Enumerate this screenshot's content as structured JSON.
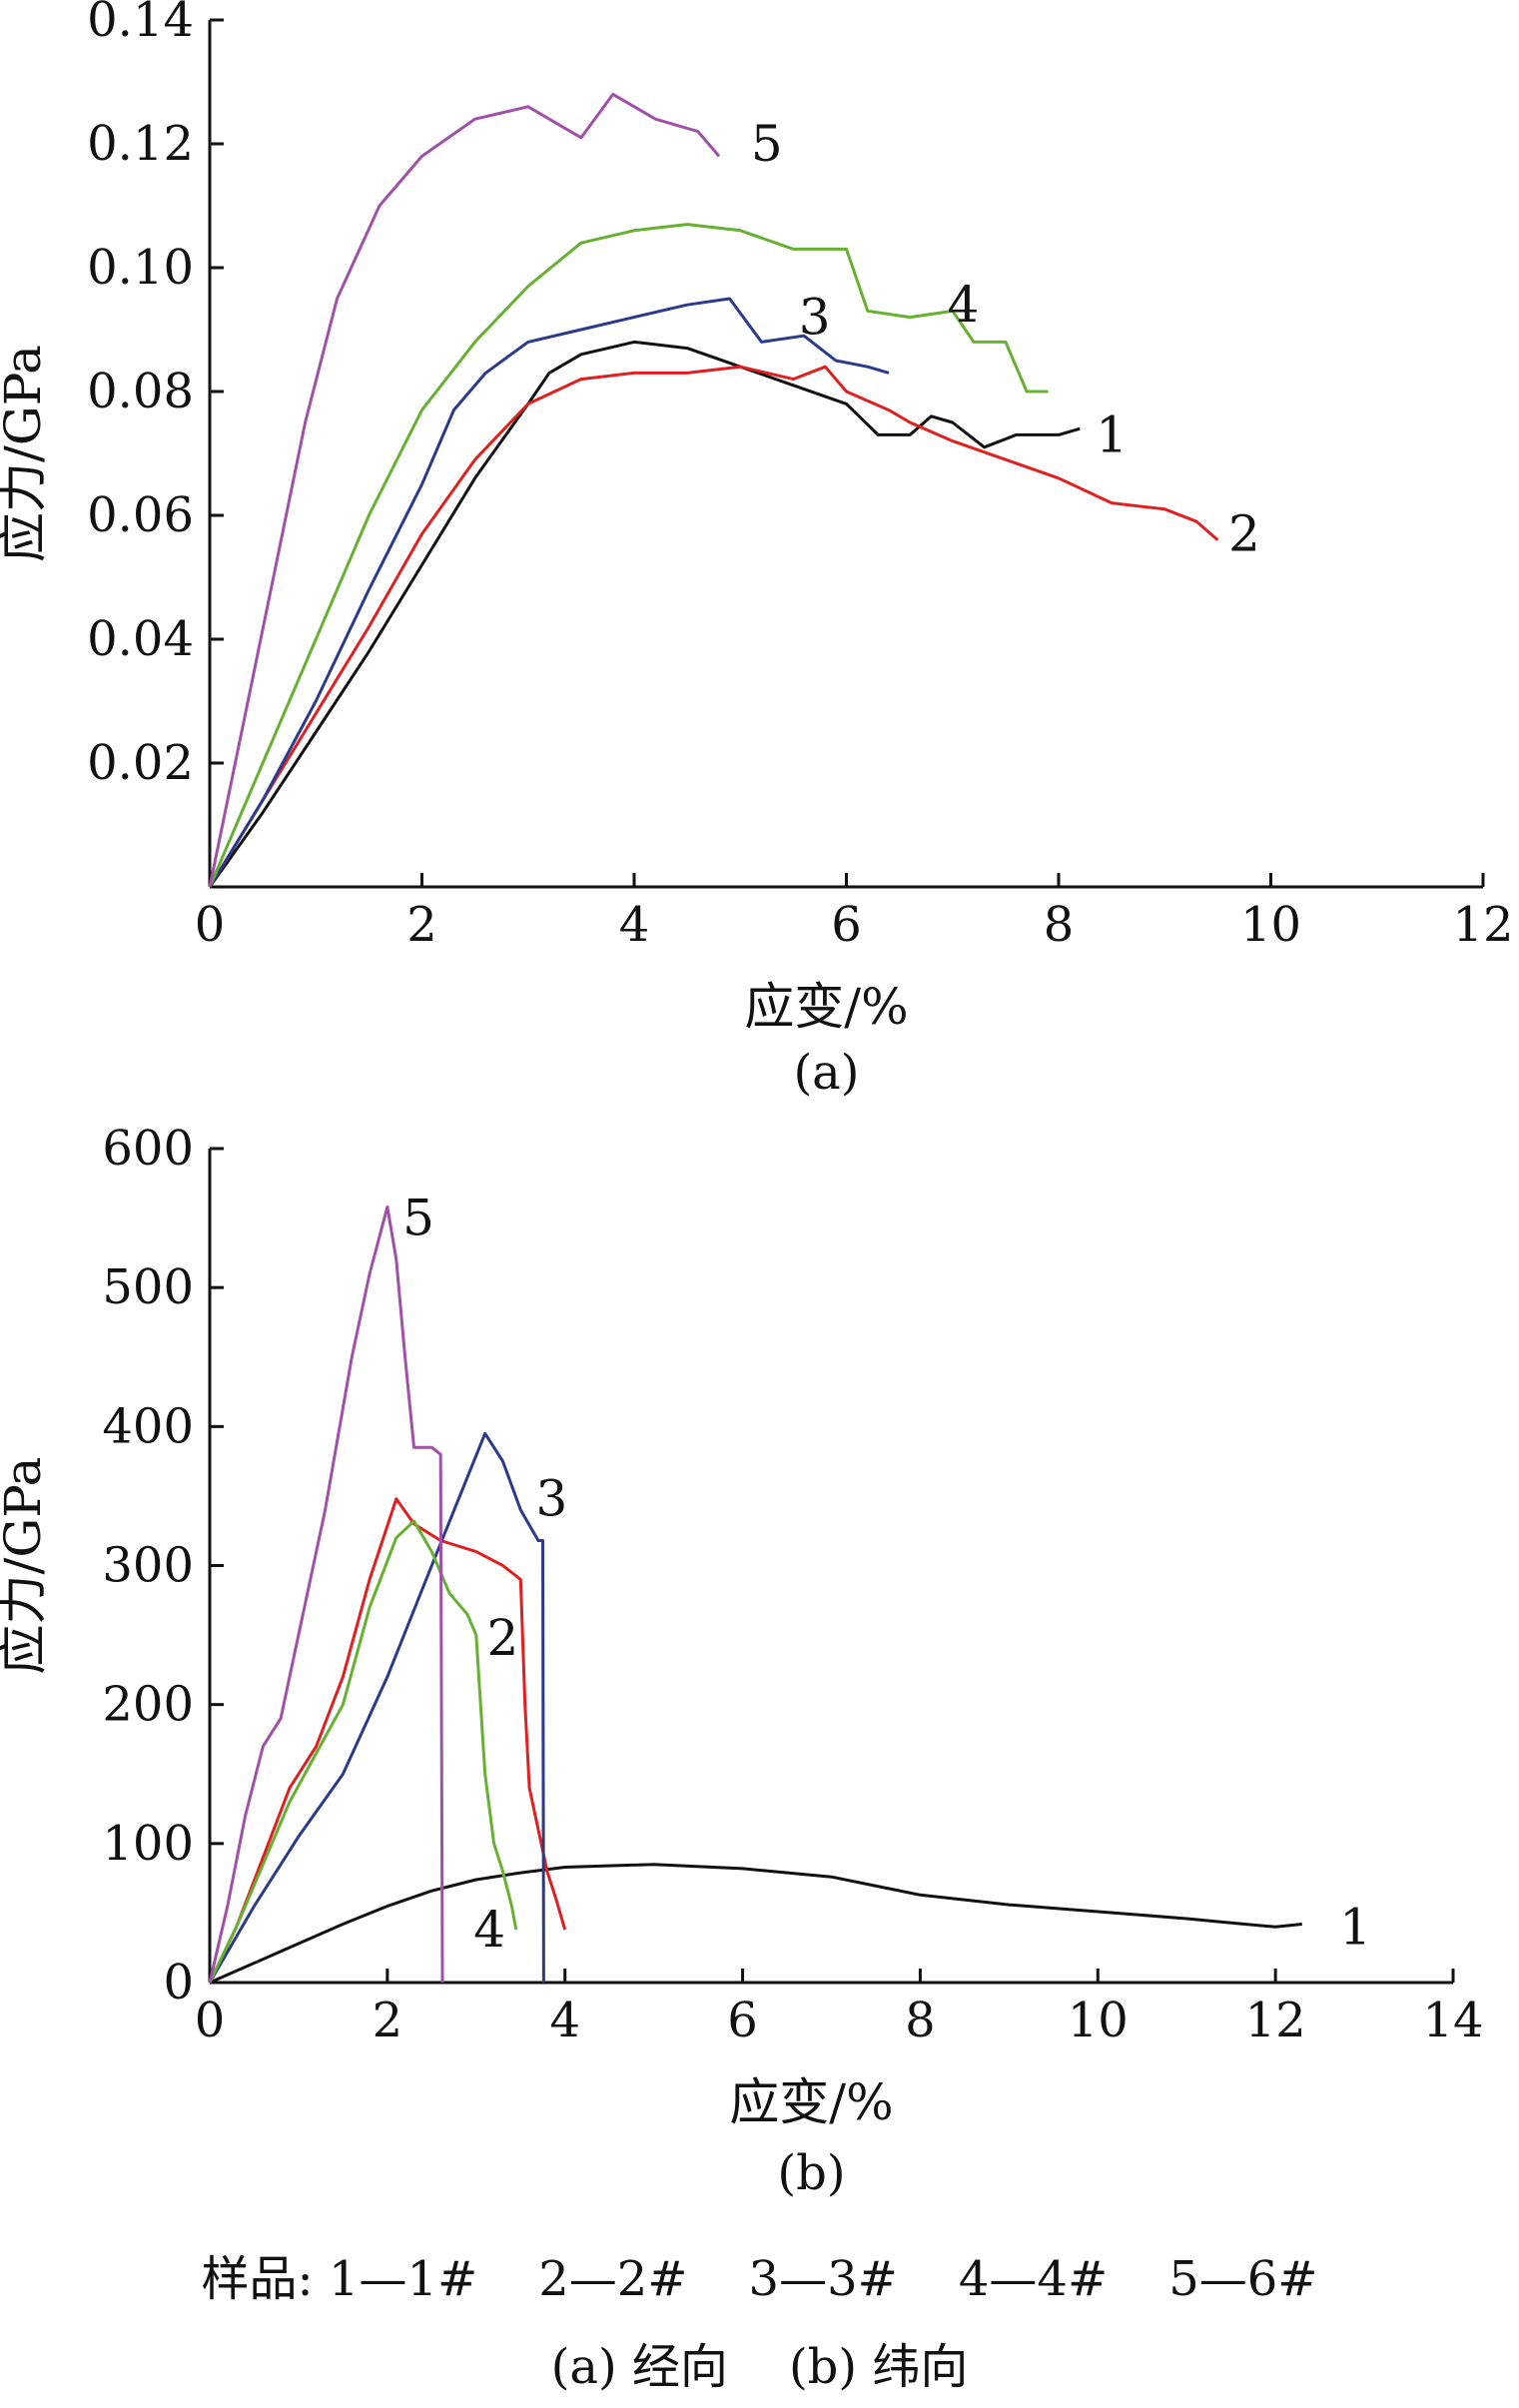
{
  "chart_data": [
    {
      "type": "line",
      "panel_label": "(a)",
      "xlabel": "应变/%",
      "ylabel": "应力/GPa",
      "xlim": [
        0,
        12
      ],
      "ylim": [
        0,
        0.14
      ],
      "x_ticks": [
        "0",
        "2",
        "4",
        "6",
        "8",
        "10",
        "12"
      ],
      "y_ticks": [
        "",
        "0.02",
        "0.04",
        "0.06",
        "0.08",
        "0.10",
        "0.12",
        "0.14"
      ],
      "series": [
        {
          "name": "1",
          "color": "#111111",
          "label_at": [
            8.5,
            0.073
          ],
          "points": [
            [
              0,
              0
            ],
            [
              0.5,
              0.012
            ],
            [
              1.0,
              0.025
            ],
            [
              1.5,
              0.038
            ],
            [
              2.0,
              0.052
            ],
            [
              2.5,
              0.066
            ],
            [
              3.0,
              0.078
            ],
            [
              3.2,
              0.083
            ],
            [
              3.5,
              0.086
            ],
            [
              4.0,
              0.088
            ],
            [
              4.5,
              0.087
            ],
            [
              5.0,
              0.084
            ],
            [
              5.5,
              0.081
            ],
            [
              6.0,
              0.078
            ],
            [
              6.3,
              0.073
            ],
            [
              6.6,
              0.073
            ],
            [
              6.8,
              0.076
            ],
            [
              7.0,
              0.075
            ],
            [
              7.3,
              0.071
            ],
            [
              7.6,
              0.073
            ],
            [
              8.0,
              0.073
            ],
            [
              8.2,
              0.074
            ]
          ]
        },
        {
          "name": "2",
          "color": "#e02020",
          "label_at": [
            9.75,
            0.057
          ],
          "points": [
            [
              0,
              0
            ],
            [
              0.5,
              0.014
            ],
            [
              1.0,
              0.028
            ],
            [
              1.5,
              0.042
            ],
            [
              2.0,
              0.057
            ],
            [
              2.5,
              0.069
            ],
            [
              3.0,
              0.078
            ],
            [
              3.5,
              0.082
            ],
            [
              4.0,
              0.083
            ],
            [
              4.5,
              0.083
            ],
            [
              5.0,
              0.084
            ],
            [
              5.5,
              0.082
            ],
            [
              5.8,
              0.084
            ],
            [
              6.0,
              0.08
            ],
            [
              6.4,
              0.077
            ],
            [
              6.6,
              0.075
            ],
            [
              7.0,
              0.072
            ],
            [
              7.5,
              0.069
            ],
            [
              8.0,
              0.066
            ],
            [
              8.5,
              0.062
            ],
            [
              9.0,
              0.061
            ],
            [
              9.3,
              0.059
            ],
            [
              9.5,
              0.056
            ]
          ]
        },
        {
          "name": "3",
          "color": "#2a3a8c",
          "label_at": [
            5.7,
            0.092
          ],
          "points": [
            [
              0,
              0
            ],
            [
              0.5,
              0.014
            ],
            [
              1.0,
              0.03
            ],
            [
              1.5,
              0.048
            ],
            [
              2.0,
              0.065
            ],
            [
              2.3,
              0.077
            ],
            [
              2.6,
              0.083
            ],
            [
              3.0,
              0.088
            ],
            [
              3.5,
              0.09
            ],
            [
              4.0,
              0.092
            ],
            [
              4.5,
              0.094
            ],
            [
              4.9,
              0.095
            ],
            [
              5.2,
              0.088
            ],
            [
              5.6,
              0.089
            ],
            [
              5.9,
              0.085
            ],
            [
              6.2,
              0.084
            ],
            [
              6.4,
              0.083
            ]
          ]
        },
        {
          "name": "4",
          "color": "#66b032",
          "label_at": [
            7.1,
            0.094
          ],
          "points": [
            [
              0,
              0
            ],
            [
              0.5,
              0.02
            ],
            [
              1.0,
              0.04
            ],
            [
              1.5,
              0.06
            ],
            [
              2.0,
              0.077
            ],
            [
              2.5,
              0.088
            ],
            [
              3.0,
              0.097
            ],
            [
              3.5,
              0.104
            ],
            [
              4.0,
              0.106
            ],
            [
              4.5,
              0.107
            ],
            [
              5.0,
              0.106
            ],
            [
              5.5,
              0.103
            ],
            [
              6.0,
              0.103
            ],
            [
              6.2,
              0.093
            ],
            [
              6.6,
              0.092
            ],
            [
              7.0,
              0.093
            ],
            [
              7.2,
              0.088
            ],
            [
              7.5,
              0.088
            ],
            [
              7.7,
              0.08
            ],
            [
              7.9,
              0.08
            ]
          ]
        },
        {
          "name": "5",
          "color": "#a050a8",
          "label_at": [
            5.25,
            0.12
          ],
          "points": [
            [
              0,
              0
            ],
            [
              0.3,
              0.025
            ],
            [
              0.6,
              0.05
            ],
            [
              0.9,
              0.075
            ],
            [
              1.2,
              0.095
            ],
            [
              1.6,
              0.11
            ],
            [
              2.0,
              0.118
            ],
            [
              2.5,
              0.124
            ],
            [
              3.0,
              0.126
            ],
            [
              3.3,
              0.123
            ],
            [
              3.5,
              0.121
            ],
            [
              3.8,
              0.128
            ],
            [
              4.2,
              0.124
            ],
            [
              4.6,
              0.122
            ],
            [
              4.8,
              0.118
            ]
          ]
        }
      ]
    },
    {
      "type": "line",
      "panel_label": "(b)",
      "xlabel": "应变/%",
      "ylabel": "应力/GPa",
      "xlim": [
        0,
        14
      ],
      "ylim": [
        0,
        600
      ],
      "x_ticks": [
        "0",
        "2",
        "4",
        "6",
        "8",
        "10",
        "12",
        "14"
      ],
      "y_ticks": [
        "0",
        "100",
        "200",
        "300",
        "400",
        "500",
        "600"
      ],
      "series": [
        {
          "name": "1",
          "color": "#111111",
          "label_at": [
            12.9,
            40
          ],
          "points": [
            [
              0,
              0
            ],
            [
              0.5,
              14
            ],
            [
              1.0,
              28
            ],
            [
              1.5,
              42
            ],
            [
              2.0,
              55
            ],
            [
              2.5,
              66
            ],
            [
              3.0,
              74
            ],
            [
              3.5,
              79
            ],
            [
              4.0,
              83
            ],
            [
              5.0,
              85
            ],
            [
              6.0,
              82
            ],
            [
              7.0,
              76
            ],
            [
              8.0,
              63
            ],
            [
              9.0,
              56
            ],
            [
              10.0,
              51
            ],
            [
              11.0,
              46
            ],
            [
              11.5,
              43
            ],
            [
              12.0,
              40
            ],
            [
              12.3,
              42
            ]
          ]
        },
        {
          "name": "2",
          "color": "#e02020",
          "label_at": [
            3.3,
            248
          ],
          "points": [
            [
              0,
              0
            ],
            [
              0.3,
              40
            ],
            [
              0.6,
              90
            ],
            [
              0.9,
              140
            ],
            [
              1.2,
              170
            ],
            [
              1.5,
              220
            ],
            [
              1.8,
              290
            ],
            [
              2.1,
              348
            ],
            [
              2.3,
              330
            ],
            [
              2.6,
              318
            ],
            [
              3.0,
              310
            ],
            [
              3.3,
              300
            ],
            [
              3.5,
              290
            ],
            [
              3.55,
              200
            ],
            [
              3.6,
              140
            ],
            [
              3.7,
              110
            ],
            [
              3.8,
              80
            ],
            [
              3.9,
              60
            ],
            [
              4.0,
              38
            ]
          ]
        },
        {
          "name": "3",
          "color": "#2a3a8c",
          "label_at": [
            3.85,
            348
          ],
          "points": [
            [
              0,
              0
            ],
            [
              0.5,
              55
            ],
            [
              1.0,
              105
            ],
            [
              1.5,
              150
            ],
            [
              2.0,
              220
            ],
            [
              2.5,
              300
            ],
            [
              3.1,
              395
            ],
            [
              3.3,
              375
            ],
            [
              3.5,
              340
            ],
            [
              3.7,
              318
            ],
            [
              3.75,
              318
            ],
            [
              3.76,
              0
            ]
          ]
        },
        {
          "name": "4",
          "color": "#66b032",
          "label_at": [
            3.15,
            38
          ],
          "points": [
            [
              0,
              0
            ],
            [
              0.3,
              40
            ],
            [
              0.6,
              85
            ],
            [
              0.9,
              130
            ],
            [
              1.2,
              165
            ],
            [
              1.5,
              200
            ],
            [
              1.8,
              270
            ],
            [
              2.1,
              320
            ],
            [
              2.3,
              332
            ],
            [
              2.5,
              310
            ],
            [
              2.7,
              280
            ],
            [
              2.9,
              265
            ],
            [
              3.0,
              250
            ],
            [
              3.1,
              150
            ],
            [
              3.2,
              100
            ],
            [
              3.3,
              80
            ],
            [
              3.4,
              55
            ],
            [
              3.45,
              38
            ]
          ]
        },
        {
          "name": "5",
          "color": "#a050a8",
          "label_at": [
            2.35,
            550
          ],
          "points": [
            [
              0,
              0
            ],
            [
              0.2,
              55
            ],
            [
              0.4,
              120
            ],
            [
              0.6,
              170
            ],
            [
              0.8,
              190
            ],
            [
              1.0,
              250
            ],
            [
              1.3,
              340
            ],
            [
              1.6,
              450
            ],
            [
              1.8,
              510
            ],
            [
              2.0,
              558
            ],
            [
              2.1,
              520
            ],
            [
              2.2,
              450
            ],
            [
              2.3,
              385
            ],
            [
              2.5,
              385
            ],
            [
              2.6,
              380
            ],
            [
              2.62,
              0
            ]
          ]
        }
      ]
    }
  ],
  "legend_text": "样品: 1—1#    2—2#    3—3#    4—4#    5—6#",
  "caption_text": "(a) 经向    (b) 纬向"
}
